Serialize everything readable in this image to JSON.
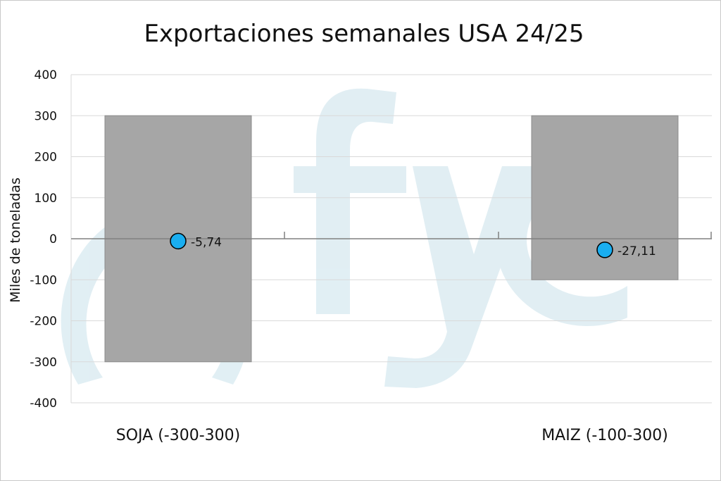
{
  "chart_data": {
    "type": "range-bar-with-markers",
    "title": "Exportaciones semanales USA 24/25",
    "ylabel": "Miles de toneladas",
    "xlabel": "",
    "ylim": [
      -400,
      400
    ],
    "yticks": [
      400,
      300,
      200,
      100,
      0,
      -100,
      -200,
      -300,
      -400
    ],
    "ytick_labels": [
      "400",
      "300",
      "200",
      "100",
      "0",
      "-100",
      "-200",
      "-300",
      "-400"
    ],
    "categories": [
      "SOJA (-300-300)",
      "MAIZ (-100-300)"
    ],
    "ranges": [
      {
        "low": -300,
        "high": 300
      },
      {
        "low": -100,
        "high": 300
      }
    ],
    "markers": [
      -5.74,
      -27.11
    ],
    "marker_labels": [
      "-5,74",
      "-27,11"
    ],
    "grid": true,
    "colors": {
      "bar": "#a6a6a6",
      "marker": "#1aaef0",
      "marker_edge": "#000000",
      "grid": "#d9d9d9",
      "axis": "#808080",
      "watermark": "#dcecf2"
    },
    "watermark": "fyo"
  }
}
